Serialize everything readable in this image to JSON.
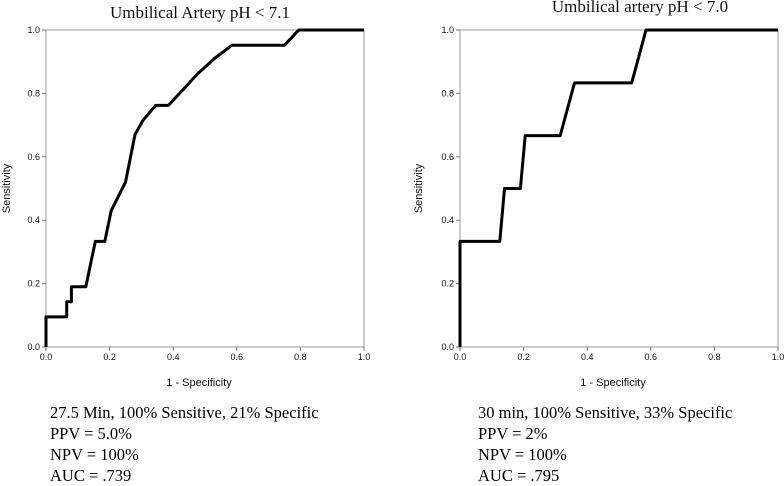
{
  "chart_data": [
    {
      "type": "line",
      "title": "Umbilical Artery pH < 7.1",
      "xlabel": "1 - Specificity",
      "ylabel": "Sensitivity",
      "xlim": [
        0,
        1
      ],
      "ylim": [
        0,
        1
      ],
      "x_ticks": [
        "0.0",
        "0.2",
        "0.4",
        "0.6",
        "0.8",
        "1.0"
      ],
      "y_ticks": [
        "0.0",
        "0.2",
        "0.4",
        "0.6",
        "0.8",
        "1.0"
      ],
      "grid": false,
      "points": [
        [
          0,
          0
        ],
        [
          0,
          0.095
        ],
        [
          0.065,
          0.095
        ],
        [
          0.065,
          0.143
        ],
        [
          0.08,
          0.143
        ],
        [
          0.08,
          0.19
        ],
        [
          0.125,
          0.19
        ],
        [
          0.145,
          0.285
        ],
        [
          0.155,
          0.333
        ],
        [
          0.185,
          0.333
        ],
        [
          0.205,
          0.43
        ],
        [
          0.25,
          0.52
        ],
        [
          0.28,
          0.67
        ],
        [
          0.305,
          0.715
        ],
        [
          0.345,
          0.762
        ],
        [
          0.385,
          0.762
        ],
        [
          0.42,
          0.8
        ],
        [
          0.475,
          0.86
        ],
        [
          0.53,
          0.91
        ],
        [
          0.585,
          0.952
        ],
        [
          0.75,
          0.952
        ],
        [
          0.795,
          1.0
        ],
        [
          1.0,
          1.0
        ]
      ],
      "stats": [
        "27.5 Min, 100% Sensitive, 21% Specific",
        "PPV = 5.0%",
        "NPV = 100%",
        "AUC = .739"
      ]
    },
    {
      "type": "line",
      "title": "Umbilical artery pH < 7.0",
      "xlabel": "1 - Specificity",
      "ylabel": "Sensitivity",
      "xlim": [
        0,
        1
      ],
      "ylim": [
        0,
        1
      ],
      "x_ticks": [
        "0.0",
        "0.2",
        "0.4",
        "0.6",
        "0.8",
        "1.0"
      ],
      "y_ticks": [
        "0.0",
        "0.2",
        "0.4",
        "0.6",
        "0.8",
        "1.0"
      ],
      "grid": false,
      "points": [
        [
          0,
          0
        ],
        [
          0,
          0.333
        ],
        [
          0.125,
          0.333
        ],
        [
          0.14,
          0.5
        ],
        [
          0.19,
          0.5
        ],
        [
          0.205,
          0.667
        ],
        [
          0.315,
          0.667
        ],
        [
          0.36,
          0.833
        ],
        [
          0.54,
          0.833
        ],
        [
          0.585,
          1.0
        ],
        [
          1.0,
          1.0
        ]
      ],
      "stats": [
        "30 min, 100% Sensitive, 33% Specific",
        "PPV = 2%",
        "NPV = 100%",
        "AUC = .795"
      ]
    }
  ]
}
